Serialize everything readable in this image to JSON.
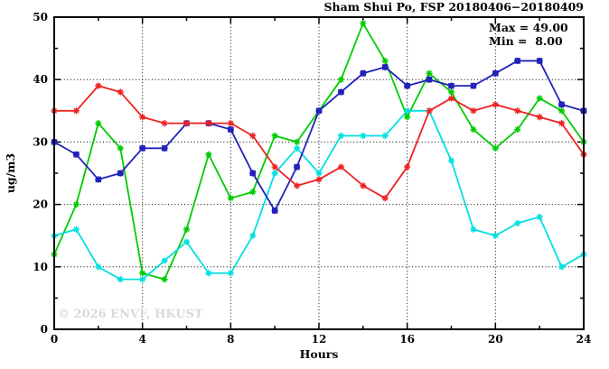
{
  "chart_data": {
    "type": "line",
    "title": "Sham Shui Po, FSP 20180406−20180409",
    "stats": {
      "max": "Max = 49.00",
      "min": "Min =  8.00"
    },
    "watermark": "© 2026 ENVF, HKUST",
    "xlabel": "Hours",
    "ylabel": "ug/m3",
    "xlim": [
      0,
      24
    ],
    "ylim": [
      0,
      50
    ],
    "x_major_ticks": [
      0,
      4,
      8,
      12,
      16,
      20,
      24
    ],
    "x_minor_ticks": [
      2,
      6,
      10,
      14,
      18,
      22
    ],
    "y_major_ticks": [
      0,
      10,
      20,
      30,
      40,
      50
    ],
    "y_minor_ticks": [
      5,
      15,
      25,
      35,
      45
    ],
    "grid_x": [
      4,
      8,
      12,
      16,
      20
    ],
    "grid_y": [
      10,
      20,
      30,
      40
    ],
    "legend_position": "none",
    "grid": "dotted-major",
    "x": [
      0,
      1,
      2,
      3,
      4,
      5,
      6,
      7,
      8,
      9,
      10,
      11,
      12,
      13,
      14,
      15,
      16,
      17,
      18,
      19,
      20,
      21,
      22,
      23,
      24
    ],
    "series": [
      {
        "name": "green",
        "color": "#00cc00",
        "marker": "star",
        "values": [
          12,
          20,
          33,
          29,
          9,
          8,
          16,
          28,
          21,
          22,
          31,
          30,
          35,
          40,
          49,
          43,
          34,
          41,
          38,
          32,
          29,
          32,
          37,
          35,
          30
        ]
      },
      {
        "name": "cyan",
        "color": "#00e0e0",
        "marker": "star",
        "values": [
          15,
          16,
          10,
          8,
          8,
          11,
          14,
          9,
          9,
          15,
          25,
          29,
          25,
          31,
          31,
          31,
          35,
          35,
          27,
          16,
          15,
          17,
          18,
          10,
          12
        ]
      },
      {
        "name": "blue",
        "color": "#2222bb",
        "marker": "square",
        "values": [
          30,
          28,
          24,
          25,
          29,
          29,
          33,
          33,
          32,
          25,
          19,
          26,
          35,
          38,
          41,
          42,
          39,
          40,
          39,
          39,
          41,
          43,
          43,
          36,
          35
        ]
      },
      {
        "name": "red",
        "color": "#ee2222",
        "marker": "star",
        "values": [
          35,
          35,
          39,
          38,
          34,
          33,
          33,
          33,
          33,
          31,
          26,
          23,
          24,
          26,
          23,
          21,
          26,
          35,
          37,
          35,
          36,
          35,
          34,
          33,
          28
        ]
      }
    ]
  }
}
